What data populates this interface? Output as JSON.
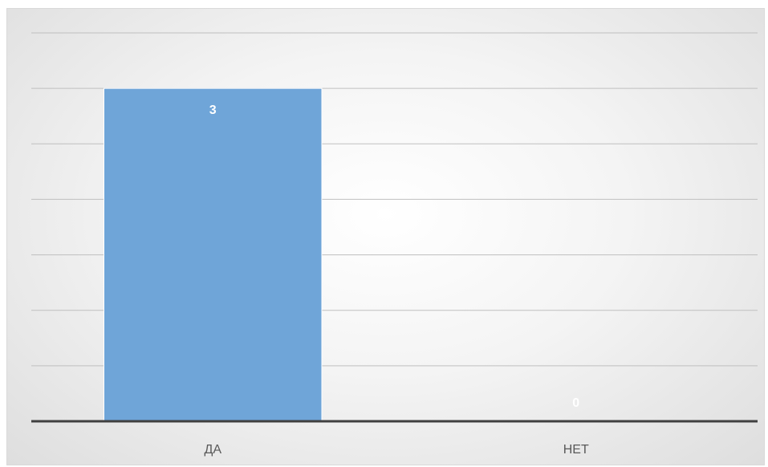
{
  "chart_data": {
    "type": "bar",
    "title": "",
    "xlabel": "",
    "ylabel": "",
    "categories": [
      "ДА",
      "НЕТ"
    ],
    "values": [
      3,
      0
    ],
    "data_labels": [
      "3",
      "0"
    ],
    "ylim": [
      0,
      3.5
    ],
    "ytick_step": 0.5,
    "ytick_labels_visible": false,
    "grid": true,
    "legend": "none",
    "bar_color": "#6fa5d8",
    "data_label_color": "#ffffff",
    "axis_color": "#404040",
    "grid_color": "#bfbfbf"
  }
}
